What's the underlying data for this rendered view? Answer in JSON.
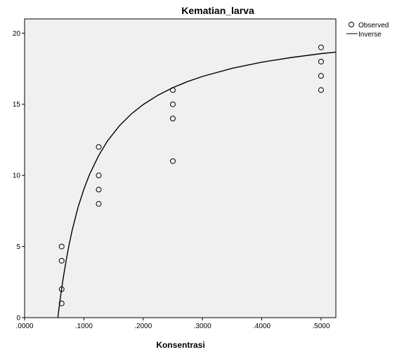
{
  "chart_data": {
    "type": "scatter",
    "title": "Kematian_larva",
    "xlabel": "Konsentrasi",
    "ylabel": "",
    "xlim": [
      0.0,
      0.525
    ],
    "ylim": [
      0,
      21
    ],
    "x_ticks": [
      0.0,
      0.1,
      0.2,
      0.3,
      0.4,
      0.5
    ],
    "x_tick_labels": [
      ".0000",
      ".1000",
      ".2000",
      ".3000",
      ".4000",
      ".5000"
    ],
    "y_ticks": [
      0,
      5,
      10,
      15,
      20
    ],
    "y_tick_labels": [
      "0",
      "5",
      "10",
      "15",
      "20"
    ],
    "background_color": "#f0f0f0",
    "series": [
      {
        "name": "Observed",
        "kind": "points",
        "x": [
          0.0625,
          0.0625,
          0.0625,
          0.0625,
          0.125,
          0.125,
          0.125,
          0.125,
          0.25,
          0.25,
          0.25,
          0.25,
          0.5,
          0.5,
          0.5,
          0.5
        ],
        "y": [
          5,
          4,
          2,
          1,
          12,
          10,
          9,
          8,
          16,
          15,
          14,
          11,
          19,
          18,
          17,
          16
        ]
      },
      {
        "name": "Inverse",
        "kind": "curve",
        "x": [
          0.056,
          0.06,
          0.065,
          0.07,
          0.075,
          0.08,
          0.09,
          0.1,
          0.11,
          0.125,
          0.14,
          0.16,
          0.18,
          0.2,
          0.225,
          0.25,
          0.275,
          0.3,
          0.35,
          0.4,
          0.45,
          0.5,
          0.525
        ],
        "y": [
          0.0,
          1.28,
          2.73,
          4.01,
          5.12,
          6.1,
          7.73,
          9.04,
          10.11,
          11.4,
          12.43,
          13.49,
          14.32,
          14.98,
          15.64,
          16.17,
          16.6,
          16.96,
          17.53,
          17.96,
          18.29,
          18.56,
          18.67
        ]
      }
    ],
    "legend": {
      "position": "top-right-outside",
      "entries": [
        {
          "label": "Observed",
          "marker": "circle"
        },
        {
          "label": "Inverse",
          "marker": "line"
        }
      ]
    },
    "grid": false
  }
}
